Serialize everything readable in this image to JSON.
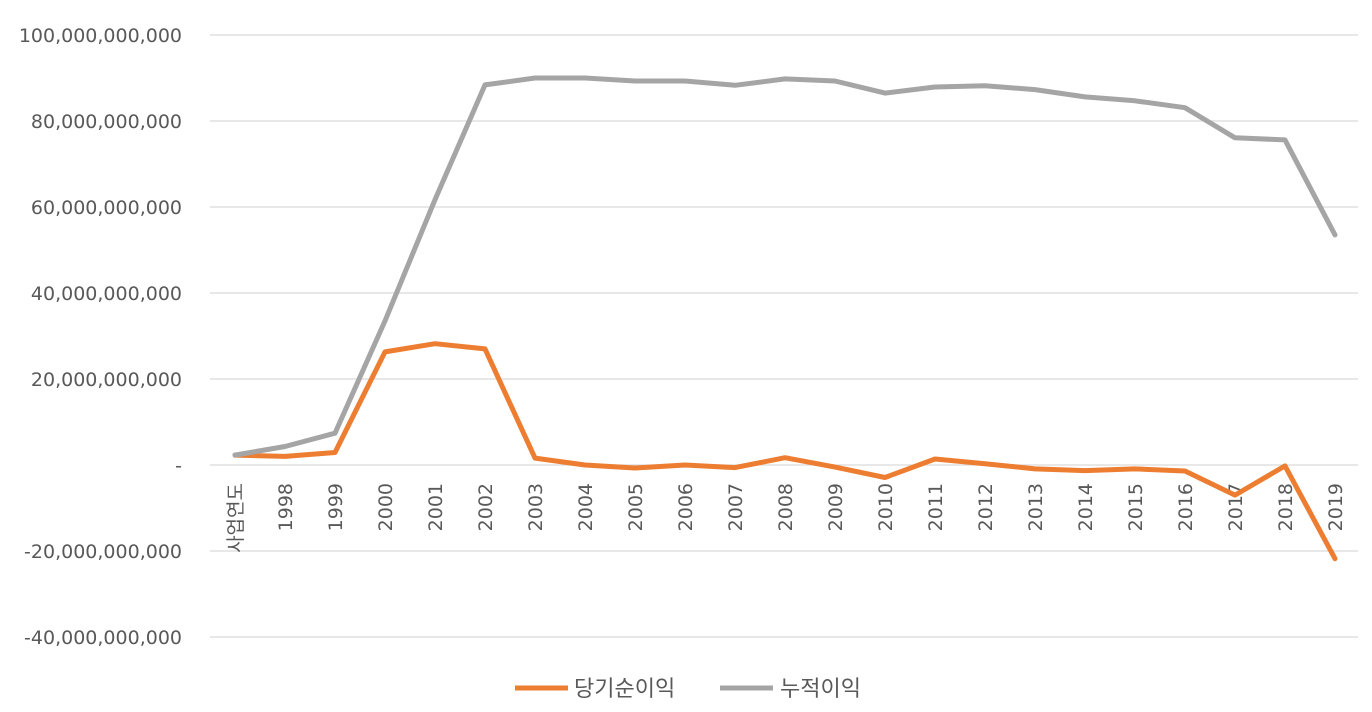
{
  "chart_data": {
    "type": "line",
    "title": "",
    "xlabel": "",
    "ylabel": "",
    "categories": [
      "사업연도",
      "1998",
      "1999",
      "2000",
      "2001",
      "2002",
      "2003",
      "2004",
      "2005",
      "2006",
      "2007",
      "2008",
      "2009",
      "2010",
      "2011",
      "2012",
      "2013",
      "2014",
      "2015",
      "2016",
      "2017",
      "2018",
      "2019"
    ],
    "ylim": [
      -40000000000,
      100000000000
    ],
    "yticks": [
      {
        "value": 100000000000,
        "label": "100,000,000,000"
      },
      {
        "value": 80000000000,
        "label": "80,000,000,000"
      },
      {
        "value": 60000000000,
        "label": "60,000,000,000"
      },
      {
        "value": 40000000000,
        "label": "40,000,000,000"
      },
      {
        "value": 20000000000,
        "label": "20,000,000,000"
      },
      {
        "value": 0,
        "label": "-"
      },
      {
        "value": -20000000000,
        "label": "-20,000,000,000"
      },
      {
        "value": -40000000000,
        "label": "-40,000,000,000"
      }
    ],
    "grid": true,
    "legend_position": "bottom",
    "series": [
      {
        "name": "당기순이익",
        "color": "#ED7D31",
        "values": [
          2300000000,
          2000000000,
          2900000000,
          26300000000,
          28200000000,
          27000000000,
          1600000000,
          0,
          -700000000,
          0,
          -600000000,
          1700000000,
          -500000000,
          -2900000000,
          1400000000,
          300000000,
          -900000000,
          -1300000000,
          -900000000,
          -1400000000,
          -7000000000,
          -200000000,
          -21800000000
        ]
      },
      {
        "name": "누적이익",
        "color": "#A5A5A5",
        "values": [
          2300000000,
          4300000000,
          7400000000,
          33500000000,
          61700000000,
          88400000000,
          90000000000,
          90000000000,
          89300000000,
          89300000000,
          88300000000,
          89800000000,
          89300000000,
          86500000000,
          87900000000,
          88200000000,
          87300000000,
          85600000000,
          84700000000,
          83100000000,
          76100000000,
          75600000000,
          53500000000
        ]
      }
    ]
  }
}
